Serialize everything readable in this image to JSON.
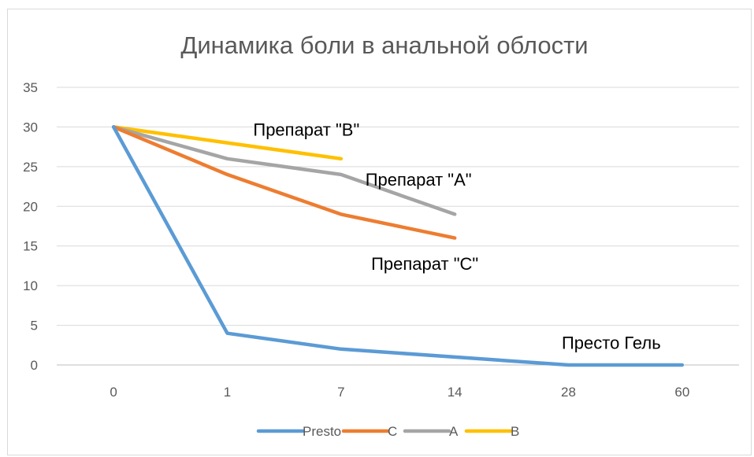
{
  "chart_data": {
    "type": "line",
    "title": "Динамика боли в анальной облости",
    "categories": [
      "0",
      "1",
      "7",
      "14",
      "28",
      "60"
    ],
    "ylim": [
      0,
      35
    ],
    "yticks": [
      0,
      5,
      10,
      15,
      20,
      25,
      30,
      35
    ],
    "grid": true,
    "legend_position": "bottom",
    "series": [
      {
        "name": "Presto",
        "color": "#5b9bd5",
        "values": [
          30,
          4,
          2,
          1,
          0,
          0
        ]
      },
      {
        "name": "C",
        "color": "#ed7d31",
        "values": [
          30,
          24,
          19,
          16,
          null,
          null
        ]
      },
      {
        "name": "A",
        "color": "#a5a5a5",
        "values": [
          30,
          26,
          24,
          19,
          null,
          null
        ]
      },
      {
        "name": "B",
        "color": "#ffc000",
        "values": [
          30,
          28,
          26,
          null,
          null,
          null
        ]
      }
    ],
    "annotations": [
      {
        "text": "Препарат \"В\"",
        "category": "7",
        "value": 30
      },
      {
        "text": "Препарат \"А\"",
        "category": "14",
        "value": 24
      },
      {
        "text": "Препарат \"С\"",
        "category": "14",
        "value": 14
      },
      {
        "text": "Престо Гель",
        "category": "60",
        "value": 3
      }
    ]
  }
}
